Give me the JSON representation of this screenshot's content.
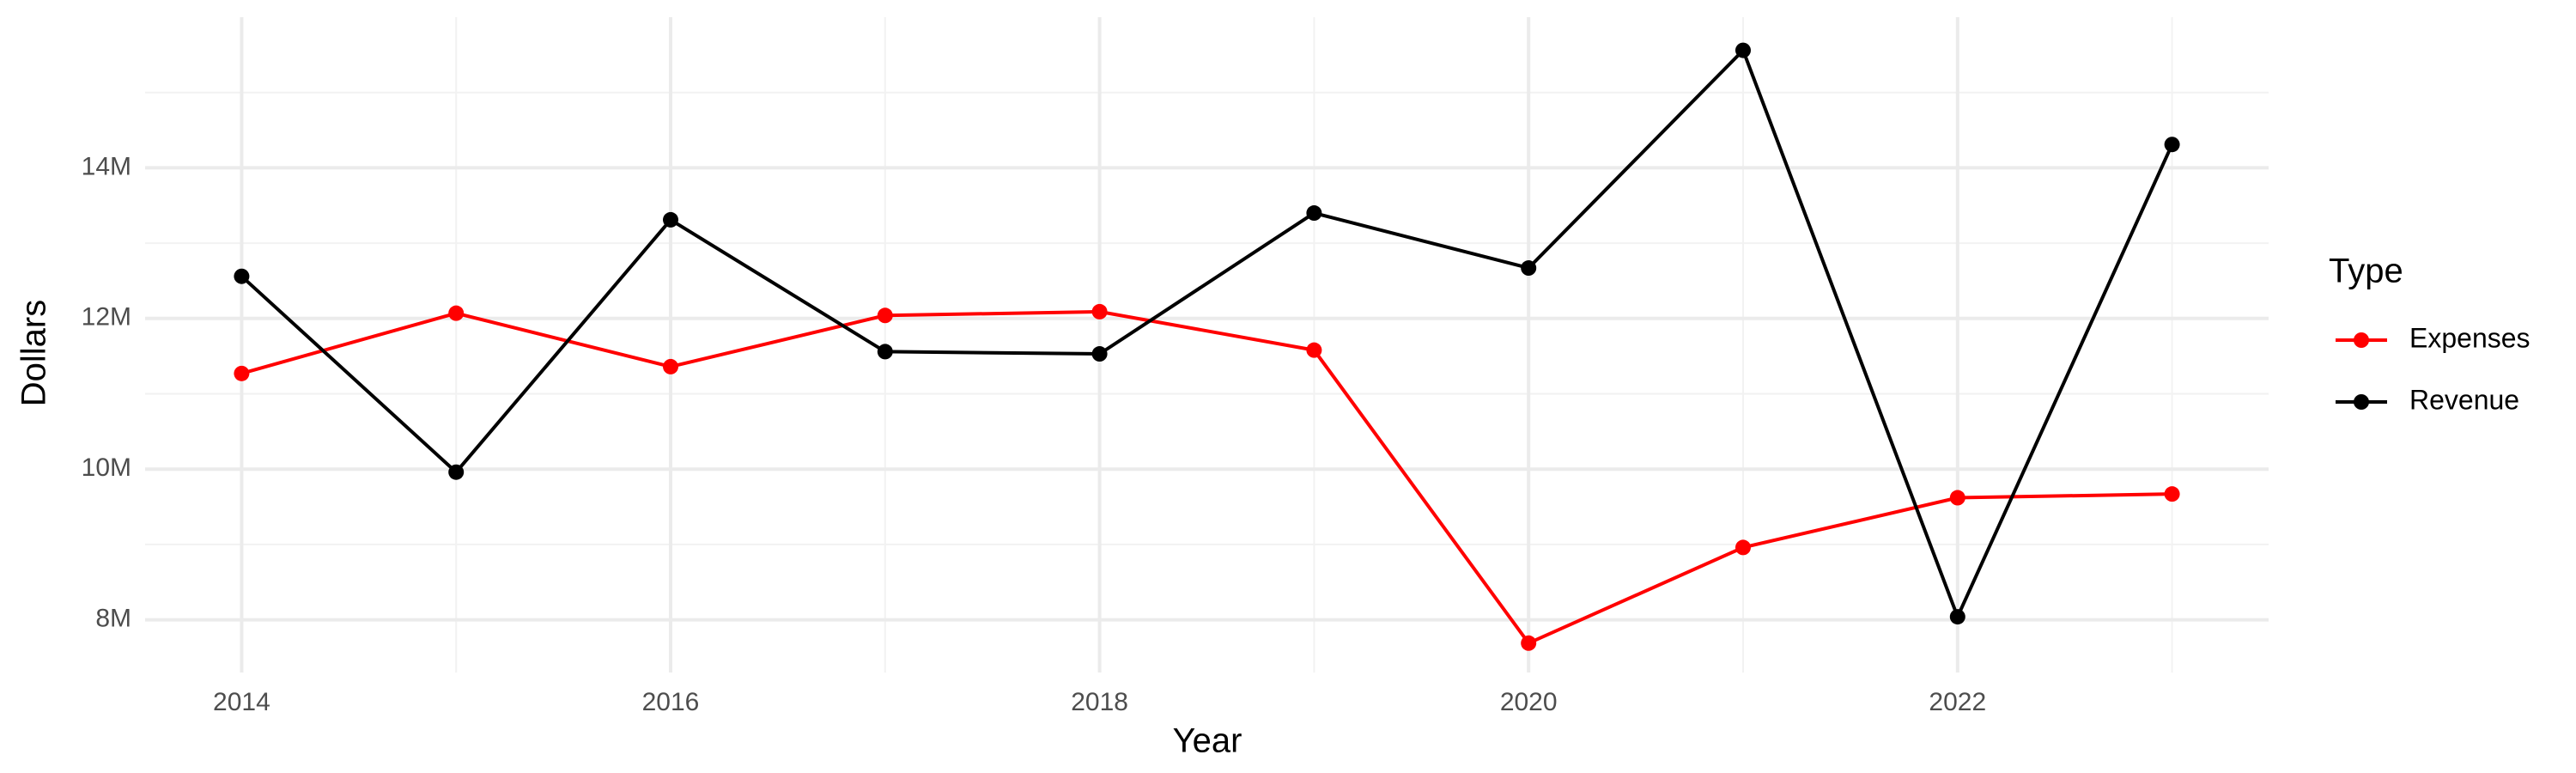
{
  "chart_data": {
    "type": "line",
    "x_label": "Year",
    "y_label": "Dollars",
    "legend_title": "Type",
    "x": [
      2014,
      2015,
      2016,
      2017,
      2018,
      2019,
      2020,
      2021,
      2022,
      2023
    ],
    "series": [
      {
        "name": "Expenses",
        "color": "#ff0000",
        "values": [
          11270000,
          12070000,
          11360000,
          12040000,
          12090000,
          11580000,
          7690000,
          8960000,
          9620000,
          9670000
        ]
      },
      {
        "name": "Revenue",
        "color": "#000000",
        "values": [
          12560000,
          9960000,
          13310000,
          11560000,
          11530000,
          13400000,
          12670000,
          15560000,
          8040000,
          14310000
        ]
      }
    ],
    "xlim": [
      2013.55,
      2023.45
    ],
    "xticks": [
      2014,
      2016,
      2018,
      2020,
      2022
    ],
    "x_minor_ticks": [
      2015,
      2017,
      2019,
      2021,
      2023
    ],
    "ylim": [
      7300000,
      16000000
    ],
    "yticks": [
      {
        "value": 8000000,
        "label": "8M"
      },
      {
        "value": 10000000,
        "label": "10M"
      },
      {
        "value": 12000000,
        "label": "12M"
      },
      {
        "value": 14000000,
        "label": "14M"
      }
    ],
    "y_minor_ticks": [
      9000000,
      11000000,
      13000000,
      15000000
    ],
    "grid": true,
    "legend_position": "right"
  }
}
